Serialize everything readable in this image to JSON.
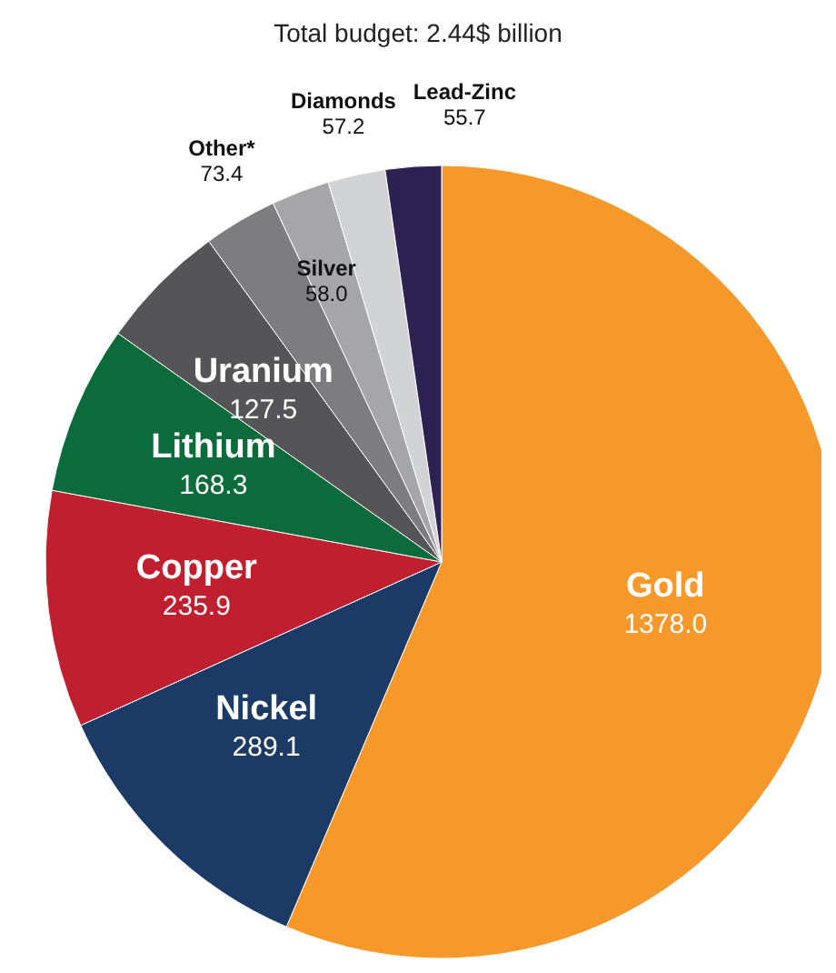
{
  "chart_data": {
    "type": "pie",
    "title": "Total budget: 2.44$ billion",
    "categories": [
      "Gold",
      "Nickel",
      "Copper",
      "Lithium",
      "Uranium",
      "Other*",
      "Silver",
      "Diamonds",
      "Lead-Zinc"
    ],
    "values": [
      1378.0,
      289.1,
      235.9,
      168.3,
      127.5,
      73.4,
      58.0,
      57.2,
      55.7
    ],
    "value_labels": [
      "1378.0",
      "289.1",
      "235.9",
      "168.3",
      "127.5",
      "73.4",
      "58.0",
      "57.2",
      "55.7"
    ],
    "colors": [
      "#f7982a",
      "#1b3a66",
      "#c01f2f",
      "#0b6b3a",
      "#555557",
      "#7d7d80",
      "#a6a6a9",
      "#d2d3d5",
      "#2e2252"
    ],
    "legend": false
  }
}
